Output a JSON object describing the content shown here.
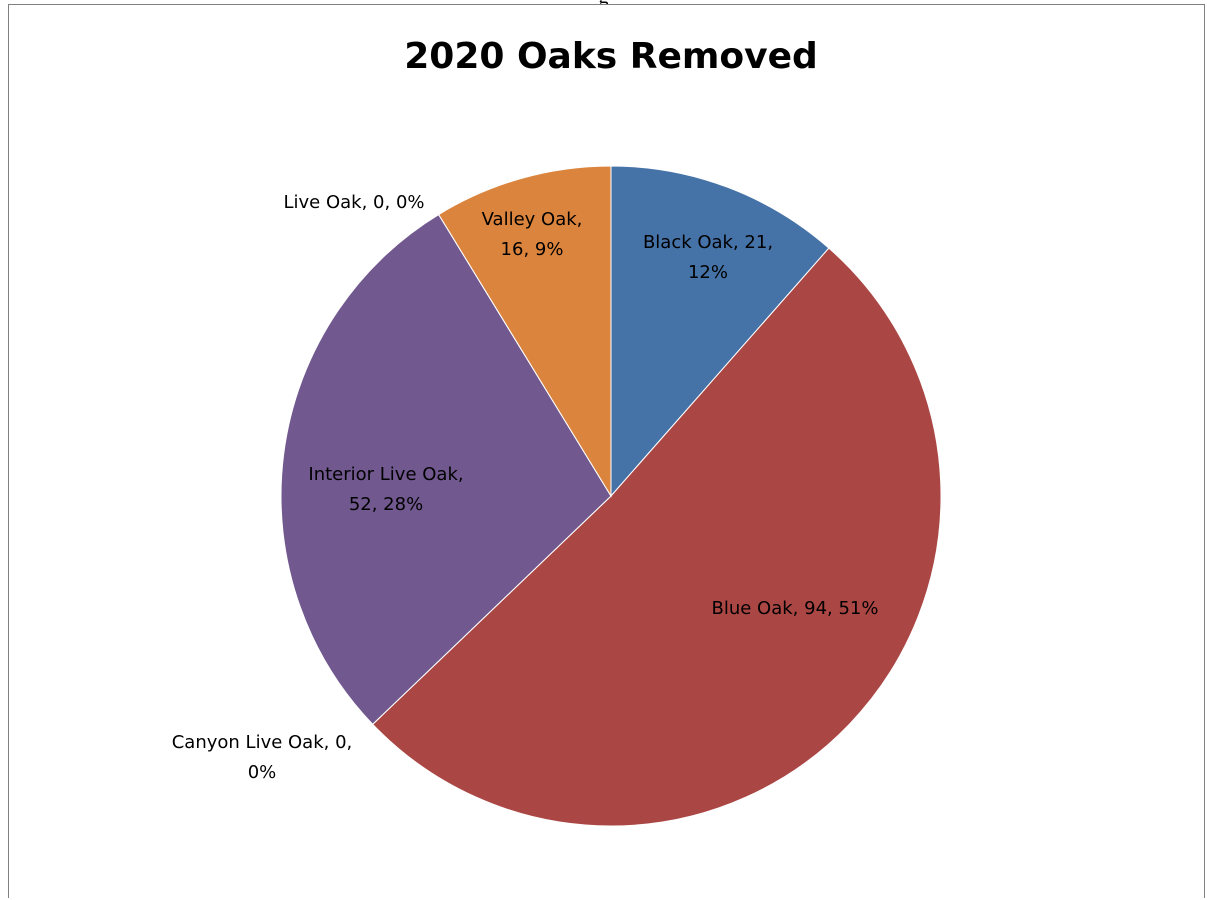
{
  "top_fragment": "g",
  "chart_data": {
    "type": "pie",
    "title": "2020 Oaks Removed",
    "categories": [
      "Black Oak",
      "Blue Oak",
      "Canyon Live Oak",
      "Interior Live Oak",
      "Live Oak",
      "Valley Oak"
    ],
    "values": [
      21,
      94,
      0,
      52,
      0,
      16
    ],
    "percents": [
      "12%",
      "51%",
      "0%",
      "28%",
      "0%",
      "9%"
    ],
    "colors": [
      "#4572A7",
      "#AA4643",
      "#89A54E",
      "#71588F",
      "#4198AF",
      "#DB843D"
    ],
    "start_angle_deg": 0,
    "direction": "clockwise",
    "legend": "none",
    "data_labels": [
      [
        "Black Oak, 21,",
        "12%"
      ],
      [
        "Blue Oak, 94, 51%"
      ],
      [
        "Canyon Live Oak, 0,",
        "0%"
      ],
      [
        "Interior Live Oak,",
        "52, 28%"
      ],
      [
        "Live Oak, 0, 0%"
      ],
      [
        "Valley Oak,",
        "16, 9%"
      ]
    ]
  }
}
